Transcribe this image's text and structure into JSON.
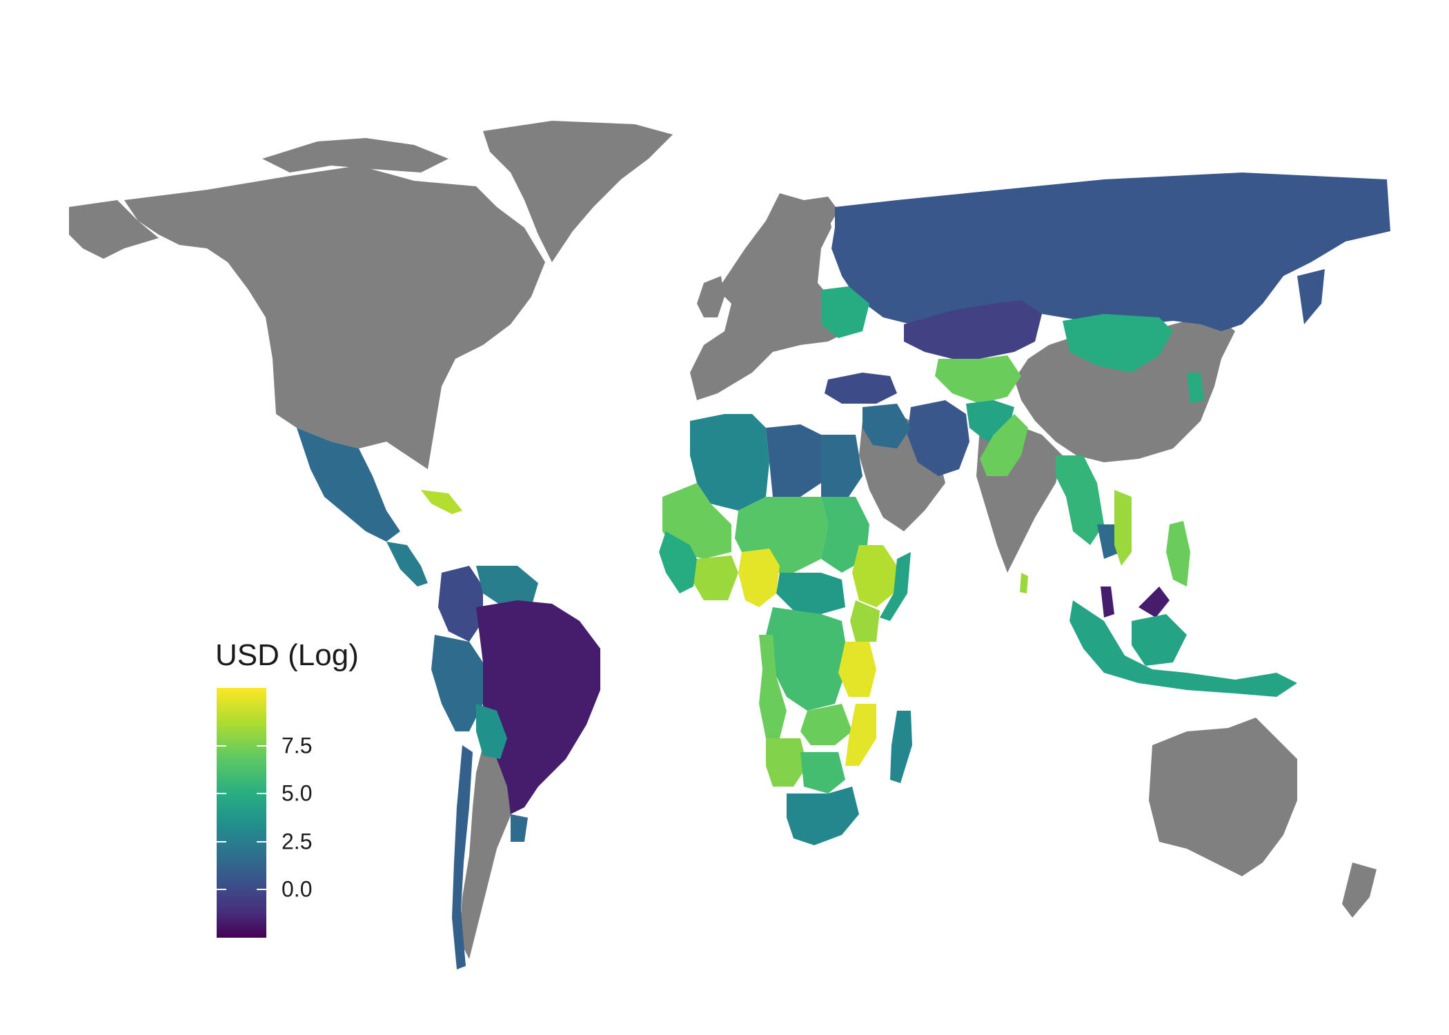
{
  "map": {
    "legend": {
      "title": "USD (Log)",
      "ticks": [
        {
          "value": 0.0,
          "label": "0.0"
        },
        {
          "value": 2.5,
          "label": "2.5"
        },
        {
          "value": 5.0,
          "label": "5.0"
        },
        {
          "value": 7.5,
          "label": "7.5"
        }
      ],
      "range": [
        -2.5,
        10.5
      ],
      "colormap": [
        "#440154",
        "#472d7b",
        "#3b528b",
        "#2c728e",
        "#21918c",
        "#28ae80",
        "#5ec962",
        "#addc30",
        "#fde725"
      ]
    },
    "no_data_color": "#808080",
    "regions": [
      {
        "name": "North America",
        "value": null
      },
      {
        "name": "Greenland",
        "value": null
      },
      {
        "name": "Europe",
        "value": null
      },
      {
        "name": "Russia",
        "value": 1.0
      },
      {
        "name": "China",
        "value": null
      },
      {
        "name": "Australia",
        "value": null
      },
      {
        "name": "Brazil",
        "value": -1.5
      },
      {
        "name": "Nigeria",
        "value": 10.0
      },
      {
        "name": "Tanzania",
        "value": 10.0
      },
      {
        "name": "Mozambique",
        "value": 10.0
      },
      {
        "name": "Ethiopia",
        "value": 9.0
      },
      {
        "name": "Kazakhstan",
        "value": 0.0
      },
      {
        "name": "Mongolia",
        "value": 5.5
      },
      {
        "name": "Mexico",
        "value": 2.0
      },
      {
        "name": "South Africa",
        "value": 3.5
      },
      {
        "name": "Indonesia",
        "value": 5.0
      },
      {
        "name": "Madagascar",
        "value": 3.5
      },
      {
        "name": "Turkey",
        "value": 0.5
      },
      {
        "name": "Iran",
        "value": 1.0
      },
      {
        "name": "Peru",
        "value": 2.0
      },
      {
        "name": "Colombia",
        "value": 0.5
      },
      {
        "name": "India",
        "value": null
      },
      {
        "name": "Libya",
        "value": 1.5
      },
      {
        "name": "Algeria",
        "value": 3.5
      },
      {
        "name": "Argentina",
        "value": null
      },
      {
        "name": "Sri Lanka",
        "value": 8.5
      },
      {
        "name": "Cuba",
        "value": 9.0
      },
      {
        "name": "Pakistan",
        "value": 7.5
      },
      {
        "name": "Afghanistan",
        "value": 5.0
      }
    ]
  }
}
